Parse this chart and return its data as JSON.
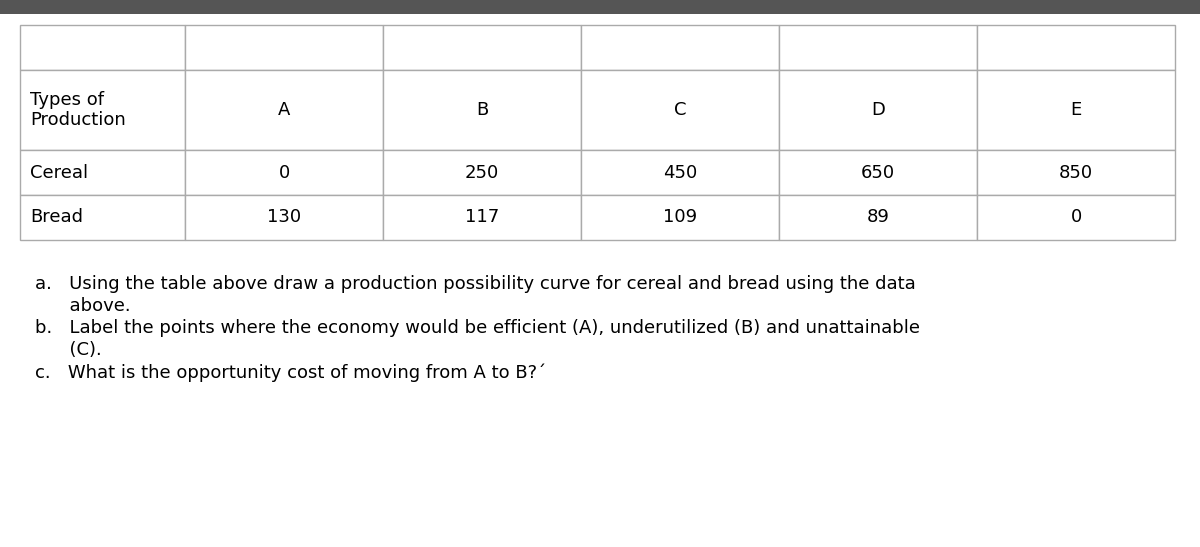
{
  "row1_label": "Types of\nProduction",
  "row2_label": "Cereal",
  "row3_label": "Bread",
  "col_headers": [
    "A",
    "B",
    "C",
    "D",
    "E"
  ],
  "row2_values": [
    "0",
    "250",
    "450",
    "650",
    "850"
  ],
  "row3_values": [
    "130",
    "117",
    "109",
    "89",
    "0"
  ],
  "q1_line1": "a.   Using the table above draw a production possibility curve for cereal and bread using the data",
  "q1_line2": "      above.",
  "q2_line1": "b.   Label the points where the economy would be efficient (A), underutilized (B) and unattainable",
  "q2_line2": "      (C).",
  "q3": "c.   What is the opportunity cost of moving from A to B?´",
  "bg_color": "#ffffff",
  "border_color": "#aaaaaa",
  "top_bar_color": "#555555",
  "font_size_table": 13,
  "font_size_questions": 13
}
